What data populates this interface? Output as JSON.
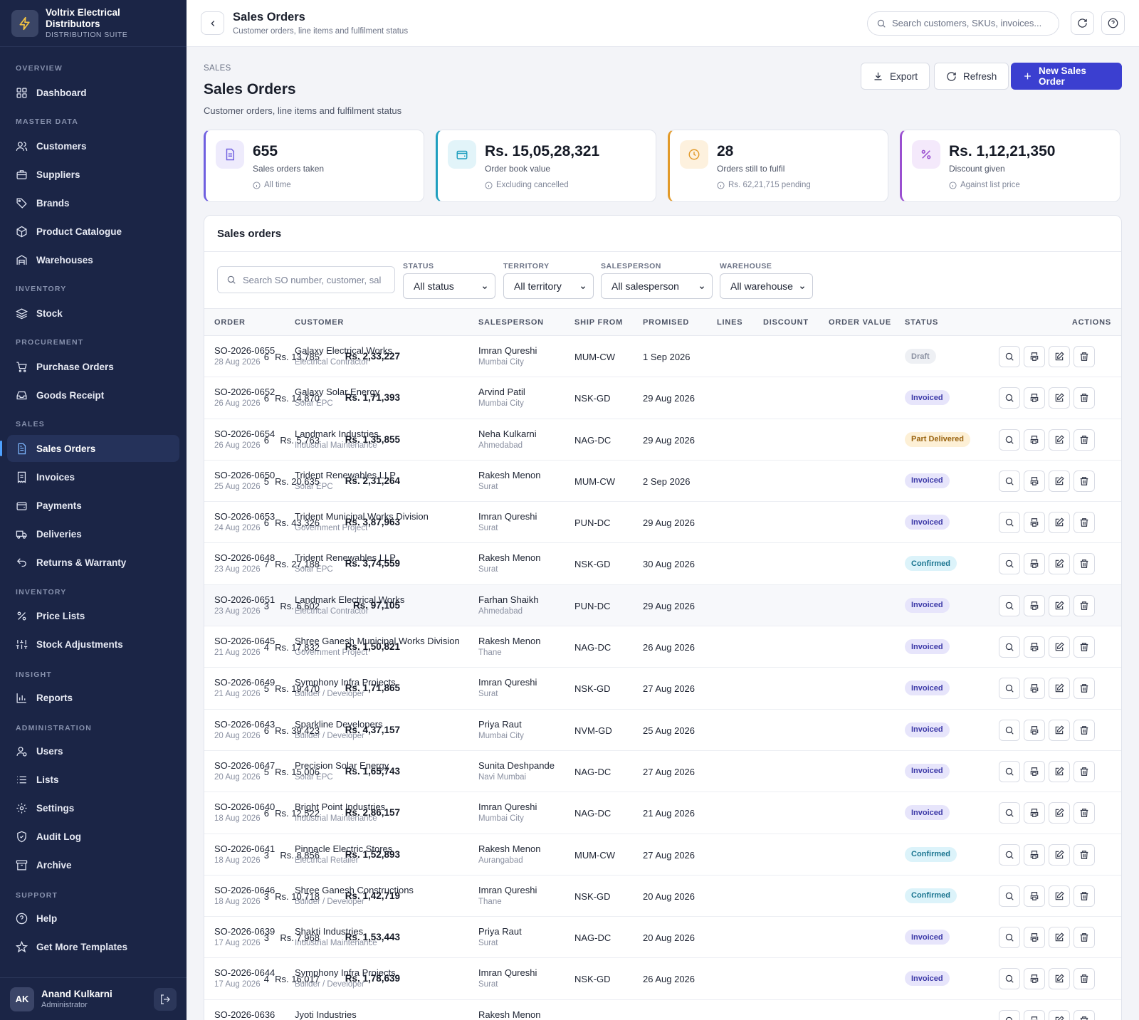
{
  "brand": {
    "name": "Voltrix Electrical Distributors",
    "suite": "DISTRIBUTION SUITE"
  },
  "nav": {
    "overview": "OVERVIEW",
    "dashboard": "Dashboard",
    "master_data": "MASTER DATA",
    "customers": "Customers",
    "suppliers": "Suppliers",
    "brands": "Brands",
    "product_catalogue": "Product Catalogue",
    "warehouses": "Warehouses",
    "inventory": "INVENTORY",
    "stock": "Stock",
    "procurement": "PROCUREMENT",
    "purchase_orders": "Purchase Orders",
    "goods_receipt": "Goods Receipt",
    "sales": "SALES",
    "sales_orders": "Sales Orders",
    "invoices": "Invoices",
    "payments": "Payments",
    "deliveries": "Deliveries",
    "returns": "Returns & Warranty",
    "inventory2": "INVENTORY",
    "price_lists": "Price Lists",
    "stock_adjustments": "Stock Adjustments",
    "insight": "INSIGHT",
    "reports": "Reports",
    "administration": "ADMINISTRATION",
    "users": "Users",
    "lists": "Lists",
    "settings": "Settings",
    "audit_log": "Audit Log",
    "archive": "Archive",
    "support": "SUPPORT",
    "help": "Help",
    "templates": "Get More Templates"
  },
  "user": {
    "initials": "AK",
    "name": "Anand Kulkarni",
    "role": "Administrator"
  },
  "topbar": {
    "title": "Sales Orders",
    "subtitle": "Customer orders, line items and fulfilment status",
    "search_placeholder": "Search customers, SKUs, invoices..."
  },
  "page": {
    "crumb": "SALES",
    "title": "Sales Orders",
    "subtitle": "Customer orders, line items and fulfilment status",
    "export": "Export",
    "refresh": "Refresh",
    "new": "New Sales Order"
  },
  "kpis": [
    {
      "value": "655",
      "label": "Sales orders taken",
      "note": "All time",
      "color": "#6f5fe0",
      "bg": "#eeebfc"
    },
    {
      "value": "Rs. 15,05,28,321",
      "label": "Order book value",
      "note": "Excluding cancelled",
      "color": "#1f9fbf",
      "bg": "#e2f4f9"
    },
    {
      "value": "28",
      "label": "Orders still to fulfil",
      "note": "Rs. 62,21,715 pending",
      "color": "#e29a2a",
      "bg": "#fdf1de"
    },
    {
      "value": "Rs. 1,12,21,350",
      "label": "Discount given",
      "note": "Against list price",
      "color": "#9a4fd0",
      "bg": "#f4e9fb"
    }
  ],
  "table": {
    "title": "Sales orders",
    "search_placeholder": "Search SO number, customer, sal",
    "filters": [
      {
        "label": "STATUS",
        "value": "All status"
      },
      {
        "label": "TERRITORY",
        "value": "All territory"
      },
      {
        "label": "SALESPERSON",
        "value": "All salesperson"
      },
      {
        "label": "WAREHOUSE",
        "value": "All warehouse"
      }
    ],
    "columns": [
      "ORDER",
      "CUSTOMER",
      "SALESPERSON",
      "SHIP FROM",
      "PROMISED",
      "LINES",
      "DISCOUNT",
      "ORDER VALUE",
      "STATUS",
      "ACTIONS"
    ],
    "rows": [
      {
        "so": "SO-2026-0655",
        "date": "28 Aug 2026",
        "cust": "Galaxy Electrical Works",
        "type": "Electrical Contractor",
        "sp": "Imran Qureshi",
        "city": "Mumbai City",
        "ship": "MUM-CW",
        "prom": "1 Sep 2026",
        "lines": "6",
        "disc": "Rs. 13,785",
        "val": "Rs. 2,33,227",
        "status": "Draft",
        "cls": "b-draft"
      },
      {
        "so": "SO-2026-0652",
        "date": "26 Aug 2026",
        "cust": "Galaxy Solar Energy",
        "type": "Solar EPC",
        "sp": "Arvind Patil",
        "city": "Mumbai City",
        "ship": "NSK-GD",
        "prom": "29 Aug 2026",
        "lines": "6",
        "disc": "Rs. 14,870",
        "val": "Rs. 1,71,393",
        "status": "Invoiced",
        "cls": "b-invoiced"
      },
      {
        "so": "SO-2026-0654",
        "date": "26 Aug 2026",
        "cust": "Landmark Industries",
        "type": "Industrial Maintenance",
        "sp": "Neha Kulkarni",
        "city": "Ahmedabad",
        "ship": "NAG-DC",
        "prom": "29 Aug 2026",
        "lines": "6",
        "disc": "Rs. 5,763",
        "val": "Rs. 1,35,855",
        "status": "Part Delivered",
        "cls": "b-part"
      },
      {
        "so": "SO-2026-0650",
        "date": "25 Aug 2026",
        "cust": "Trident Renewables LLP",
        "type": "Solar EPC",
        "sp": "Rakesh Menon",
        "city": "Surat",
        "ship": "MUM-CW",
        "prom": "2 Sep 2026",
        "lines": "5",
        "disc": "Rs. 20,635",
        "val": "Rs. 2,31,264",
        "status": "Invoiced",
        "cls": "b-invoiced"
      },
      {
        "so": "SO-2026-0653",
        "date": "24 Aug 2026",
        "cust": "Trident Municipal Works Division",
        "type": "Government Project",
        "sp": "Imran Qureshi",
        "city": "Surat",
        "ship": "PUN-DC",
        "prom": "29 Aug 2026",
        "lines": "6",
        "disc": "Rs. 43,326",
        "val": "Rs. 3,87,963",
        "status": "Invoiced",
        "cls": "b-invoiced"
      },
      {
        "so": "SO-2026-0648",
        "date": "23 Aug 2026",
        "cust": "Trident Renewables LLP",
        "type": "Solar EPC",
        "sp": "Rakesh Menon",
        "city": "Surat",
        "ship": "NSK-GD",
        "prom": "30 Aug 2026",
        "lines": "7",
        "disc": "Rs. 27,188",
        "val": "Rs. 3,74,559",
        "status": "Confirmed",
        "cls": "b-confirmed"
      },
      {
        "so": "SO-2026-0651",
        "date": "23 Aug 2026",
        "cust": "Landmark Electrical Works",
        "type": "Electrical Contractor",
        "sp": "Farhan Shaikh",
        "city": "Ahmedabad",
        "ship": "PUN-DC",
        "prom": "29 Aug 2026",
        "lines": "3",
        "disc": "Rs. 6,602",
        "val": "Rs. 97,105",
        "status": "Invoiced",
        "cls": "b-invoiced"
      },
      {
        "so": "SO-2026-0645",
        "date": "21 Aug 2026",
        "cust": "Shree Ganesh Municipal Works Division",
        "type": "Government Project",
        "sp": "Rakesh Menon",
        "city": "Thane",
        "ship": "NAG-DC",
        "prom": "26 Aug 2026",
        "lines": "4",
        "disc": "Rs. 17,832",
        "val": "Rs. 1,50,821",
        "status": "Invoiced",
        "cls": "b-invoiced"
      },
      {
        "so": "SO-2026-0649",
        "date": "21 Aug 2026",
        "cust": "Symphony Infra Projects",
        "type": "Builder / Developer",
        "sp": "Imran Qureshi",
        "city": "Surat",
        "ship": "NSK-GD",
        "prom": "27 Aug 2026",
        "lines": "5",
        "disc": "Rs. 19,470",
        "val": "Rs. 1,71,865",
        "status": "Invoiced",
        "cls": "b-invoiced"
      },
      {
        "so": "SO-2026-0643",
        "date": "20 Aug 2026",
        "cust": "Sparkline Developers",
        "type": "Builder / Developer",
        "sp": "Priya Raut",
        "city": "Mumbai City",
        "ship": "NVM-GD",
        "prom": "25 Aug 2026",
        "lines": "6",
        "disc": "Rs. 39,423",
        "val": "Rs. 4,37,157",
        "status": "Invoiced",
        "cls": "b-invoiced"
      },
      {
        "so": "SO-2026-0647",
        "date": "20 Aug 2026",
        "cust": "Precision Solar Energy",
        "type": "Solar EPC",
        "sp": "Sunita Deshpande",
        "city": "Navi Mumbai",
        "ship": "NAG-DC",
        "prom": "27 Aug 2026",
        "lines": "5",
        "disc": "Rs. 15,006",
        "val": "Rs. 1,65,743",
        "status": "Invoiced",
        "cls": "b-invoiced"
      },
      {
        "so": "SO-2026-0640",
        "date": "18 Aug 2026",
        "cust": "Bright Point Industries",
        "type": "Industrial Maintenance",
        "sp": "Imran Qureshi",
        "city": "Mumbai City",
        "ship": "NAG-DC",
        "prom": "21 Aug 2026",
        "lines": "6",
        "disc": "Rs. 12,522",
        "val": "Rs. 2,86,157",
        "status": "Invoiced",
        "cls": "b-invoiced"
      },
      {
        "so": "SO-2026-0641",
        "date": "18 Aug 2026",
        "cust": "Pinnacle Electric Stores",
        "type": "Electrical Retailer",
        "sp": "Rakesh Menon",
        "city": "Aurangabad",
        "ship": "MUM-CW",
        "prom": "27 Aug 2026",
        "lines": "3",
        "disc": "Rs. 8,856",
        "val": "Rs. 1,52,893",
        "status": "Confirmed",
        "cls": "b-confirmed"
      },
      {
        "so": "SO-2026-0646",
        "date": "18 Aug 2026",
        "cust": "Shree Ganesh Constructions",
        "type": "Builder / Developer",
        "sp": "Imran Qureshi",
        "city": "Thane",
        "ship": "NSK-GD",
        "prom": "20 Aug 2026",
        "lines": "3",
        "disc": "Rs. 10,718",
        "val": "Rs. 1,42,719",
        "status": "Confirmed",
        "cls": "b-confirmed"
      },
      {
        "so": "SO-2026-0639",
        "date": "17 Aug 2026",
        "cust": "Shakti Industries",
        "type": "Industrial Maintenance",
        "sp": "Priya Raut",
        "city": "Surat",
        "ship": "NAG-DC",
        "prom": "20 Aug 2026",
        "lines": "3",
        "disc": "Rs. 7,968",
        "val": "Rs. 1,53,443",
        "status": "Invoiced",
        "cls": "b-invoiced"
      },
      {
        "so": "SO-2026-0644",
        "date": "17 Aug 2026",
        "cust": "Symphony Infra Projects",
        "type": "Builder / Developer",
        "sp": "Imran Qureshi",
        "city": "Surat",
        "ship": "NSK-GD",
        "prom": "26 Aug 2026",
        "lines": "4",
        "disc": "Rs. 16,017",
        "val": "Rs. 1,78,639",
        "status": "Invoiced",
        "cls": "b-invoiced"
      },
      {
        "so": "SO-2026-0636",
        "date": "",
        "cust": "Jyoti Industries",
        "type": "",
        "sp": "Rakesh Menon",
        "city": "",
        "ship": "",
        "prom": "",
        "lines": "",
        "disc": "",
        "val": "",
        "status": "",
        "cls": "b-invoiced"
      }
    ]
  }
}
